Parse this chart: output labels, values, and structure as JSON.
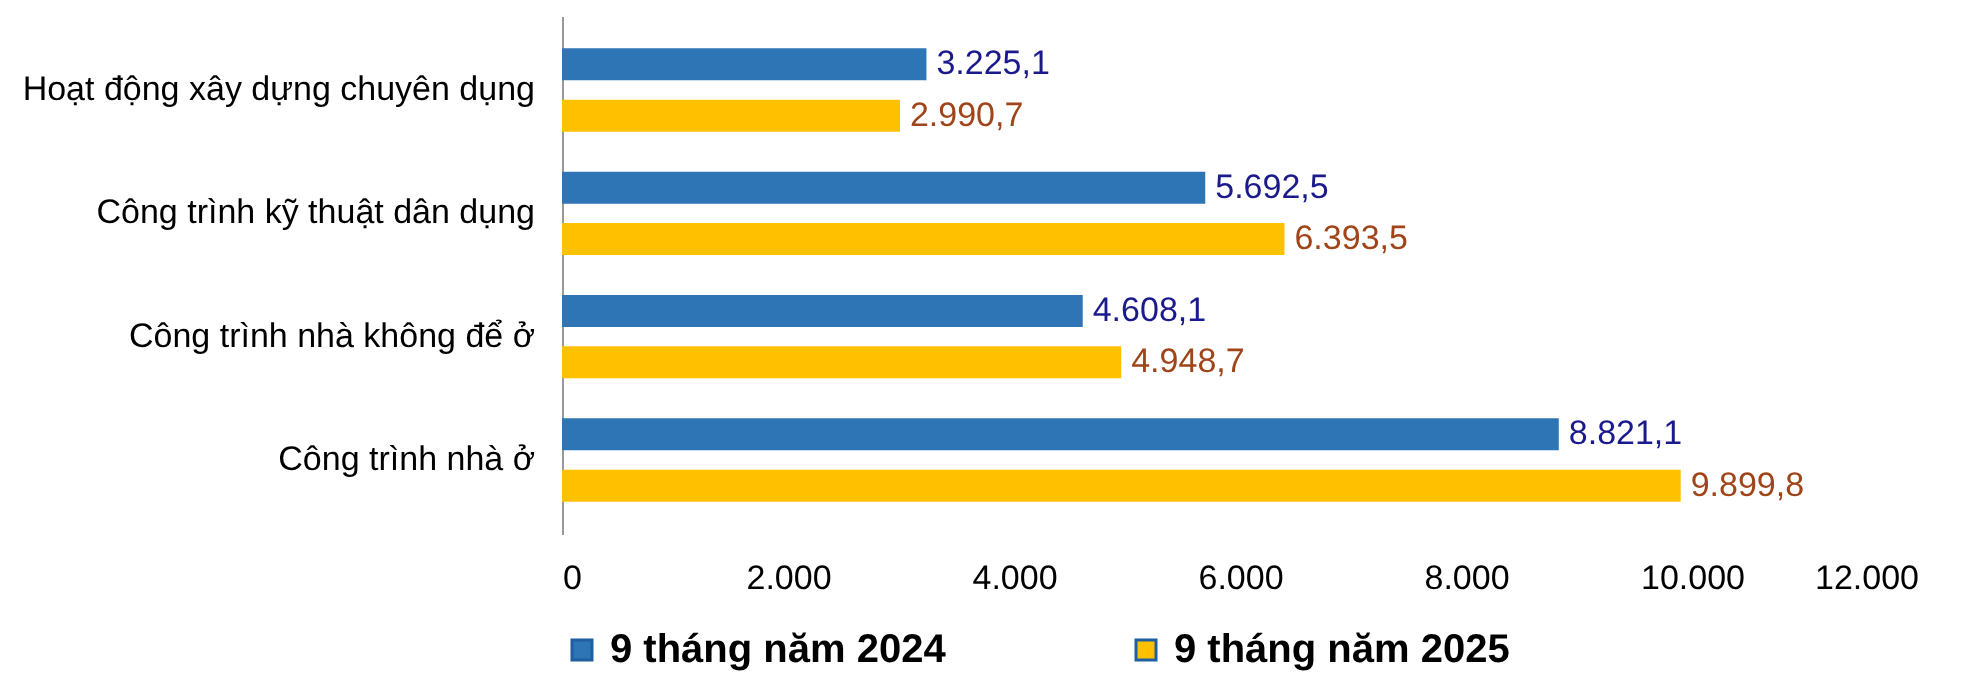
{
  "chart_data": {
    "type": "bar",
    "orientation": "horizontal",
    "categories": [
      "Hoạt động xây dựng chuyên dụng",
      "Công trình kỹ thuật dân dụng",
      "Công trình nhà không để ở",
      "Công trình nhà ở"
    ],
    "series": [
      {
        "name": "9 tháng năm 2024",
        "color": "#2e75b6",
        "values": [
          3225.1,
          5692.5,
          4608.1,
          8821.1
        ],
        "value_labels": [
          "3.225,1",
          "5.692,5",
          "4.608,1",
          "8.821,1"
        ]
      },
      {
        "name": "9 tháng năm 2025",
        "color": "#ffc000",
        "values": [
          2990.7,
          6393.5,
          4948.7,
          9899.8
        ],
        "value_labels": [
          "2.990,7",
          "6.393,5",
          "4.948,7",
          "9.899,8"
        ]
      }
    ],
    "xlim": [
      0,
      12000
    ],
    "xticks": [
      0,
      {
        "value": 2000,
        "label": "2.000"
      },
      {
        "value": 4000,
        "label": "4.000"
      },
      {
        "value": 6000,
        "label": "6.000"
      },
      {
        "value": 8000,
        "label": "8.000"
      },
      {
        "value": 10000,
        "label": "10.000"
      },
      {
        "value": 12000,
        "label": "12.000"
      }
    ],
    "grid": false,
    "legend": "bottom"
  }
}
